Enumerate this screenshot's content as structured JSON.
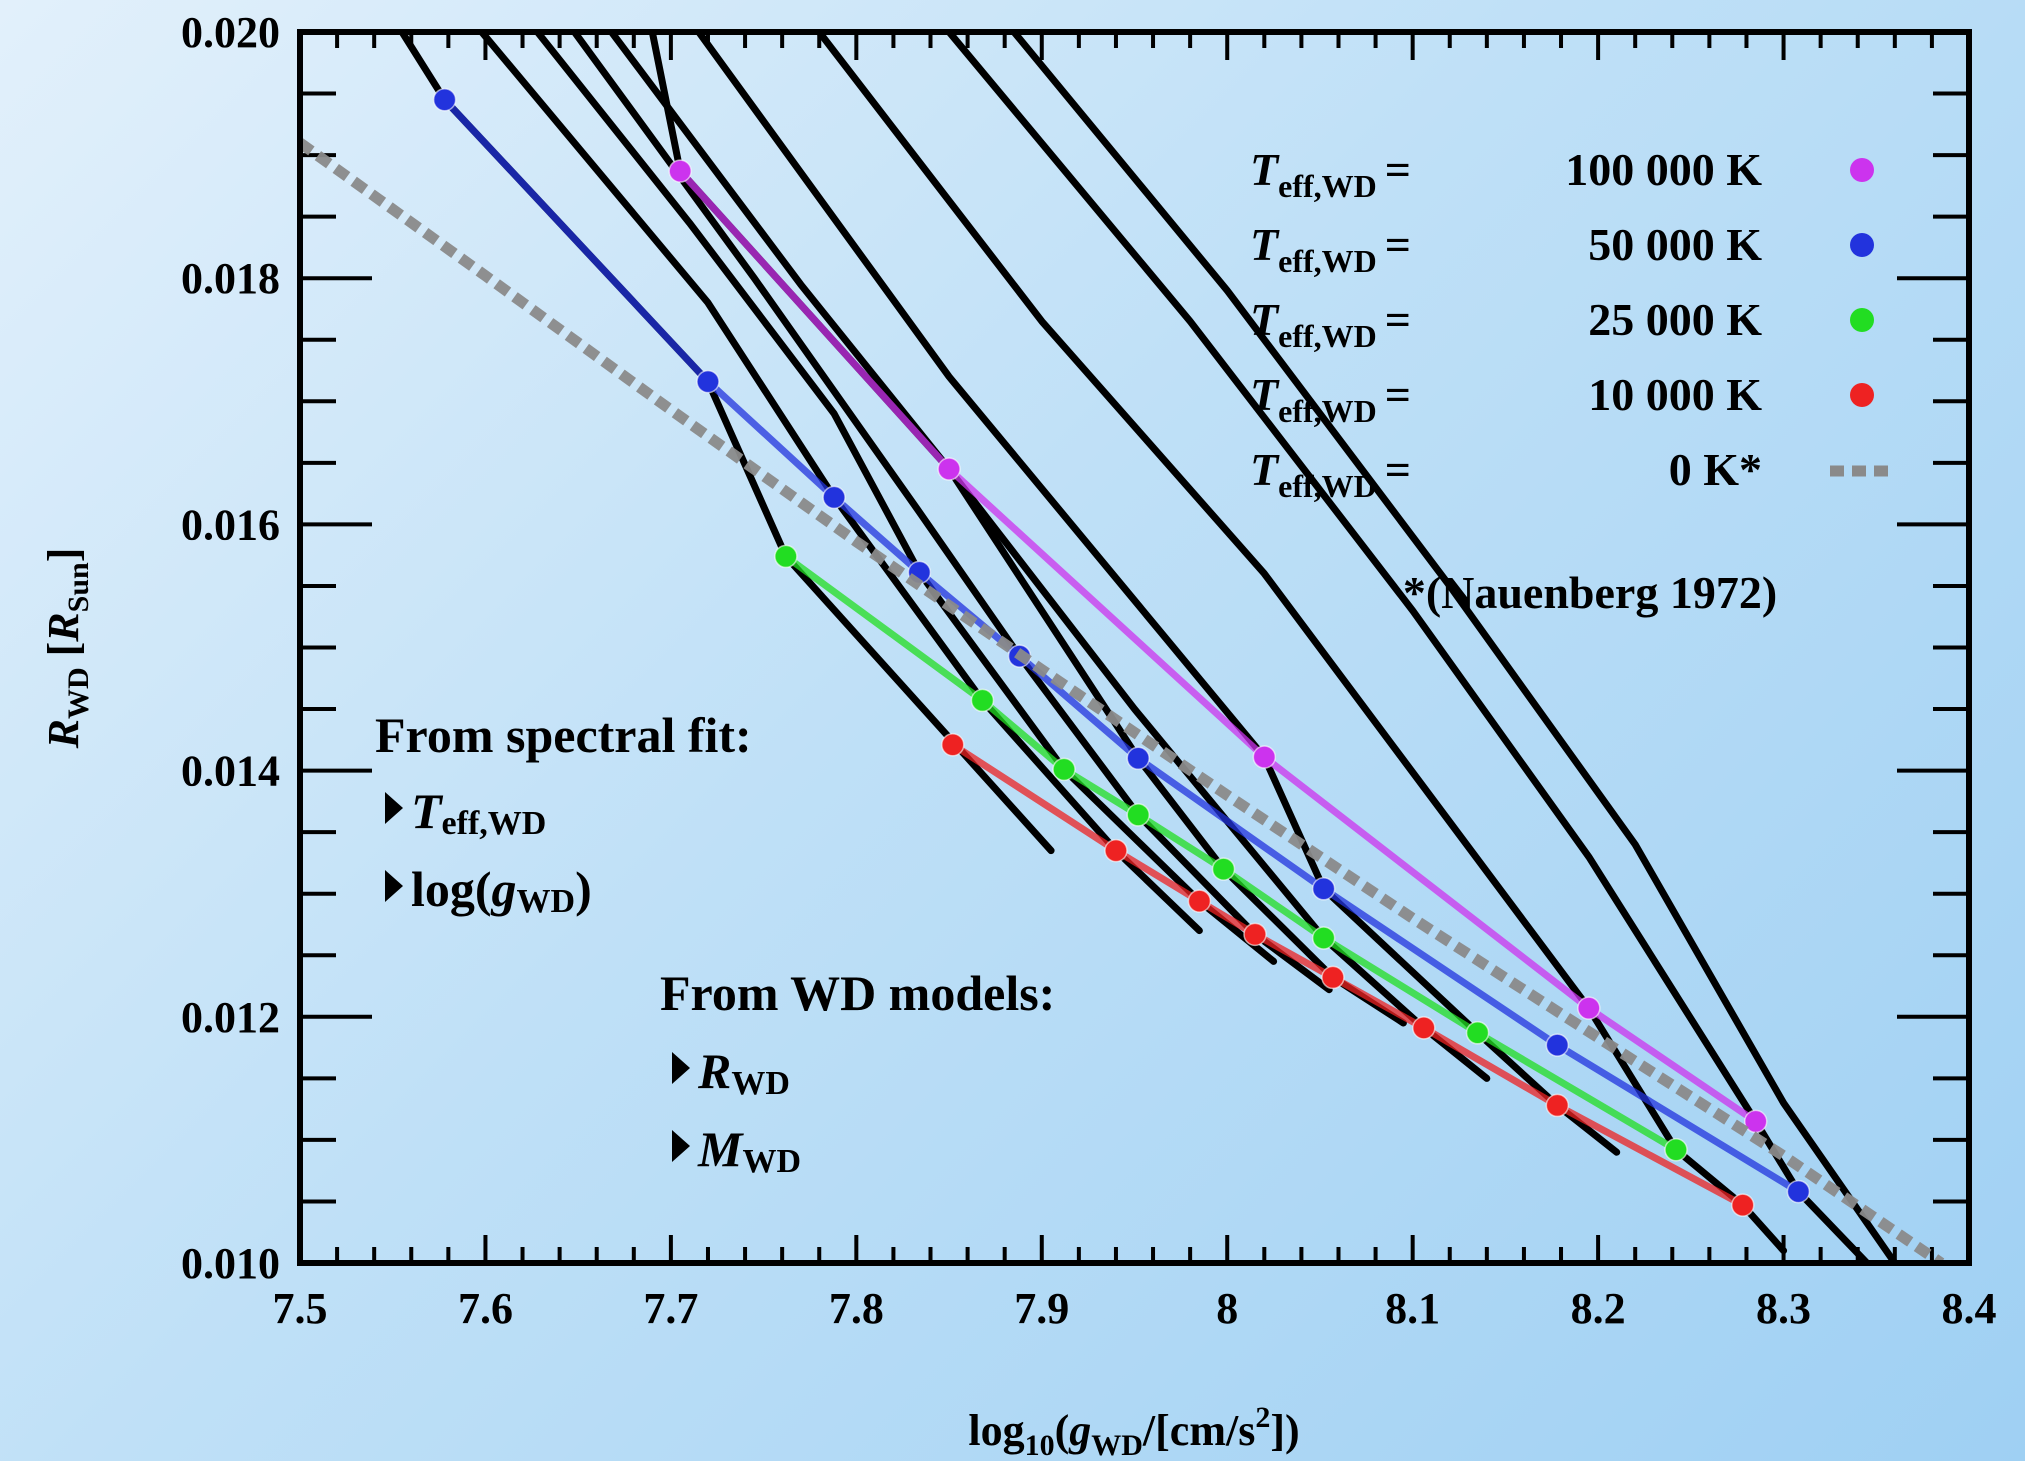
{
  "chart_data": {
    "type": "line",
    "xlabel": {
      "base": "log",
      "base_sub": "10",
      "open": "(",
      "var": "g",
      "var_sub": "WD",
      "units": "/[cm/s",
      "sup": "2",
      "close": "])"
    },
    "ylabel": {
      "var": "R",
      "var_sub": "WD",
      "units_open": " [",
      "unit_var": "R",
      "unit_sub": "Sun",
      "units_close": "]"
    },
    "xlim": [
      7.5,
      8.4
    ],
    "ylim": [
      0.01,
      0.02
    ],
    "x_ticks": [
      "7.5",
      "7.6",
      "7.7",
      "7.8",
      "7.9",
      "8",
      "8.1",
      "8.2",
      "8.3",
      "8.4"
    ],
    "y_ticks": [
      "0.010",
      "0.012",
      "0.014",
      "0.016",
      "0.018",
      "0.020"
    ],
    "legend_position": "top-right",
    "legend": [
      {
        "sym": "T",
        "sub": "eff,WD",
        "eq": "=",
        "value": "100 000 K",
        "color": "#cc33ee",
        "marker": "dot"
      },
      {
        "sym": "T",
        "sub": "eff,WD",
        "eq": "=",
        "value": "50 000 K",
        "color": "#2233dd",
        "marker": "dot"
      },
      {
        "sym": "T",
        "sub": "eff,WD",
        "eq": "=",
        "value": "25 000 K",
        "color": "#22dd22",
        "marker": "dot"
      },
      {
        "sym": "T",
        "sub": "eff,WD",
        "eq": "=",
        "value": "10 000 K",
        "color": "#ee2222",
        "marker": "dot"
      },
      {
        "sym": "T",
        "sub": "eff,WD",
        "eq": "=",
        "value": "0 K*",
        "color": "#8a8a8a",
        "marker": "dash"
      }
    ],
    "legend_note": "*(Nauenberg 1972)",
    "series": [
      {
        "color": "#cc33ee",
        "x": [
          7.705,
          7.85,
          8.02,
          8.195,
          8.285
        ],
        "y": [
          0.01887,
          0.01645,
          0.01411,
          0.01207,
          0.01115
        ]
      },
      {
        "color": "#2233dd",
        "x": [
          7.578,
          7.72,
          7.788,
          7.834,
          7.888,
          7.952,
          8.052,
          8.178,
          8.308
        ],
        "y": [
          0.01945,
          0.01716,
          0.01622,
          0.01561,
          0.01493,
          0.0141,
          0.01304,
          0.01177,
          0.01058
        ]
      },
      {
        "color": "#22dd22",
        "x": [
          7.762,
          7.868,
          7.912,
          7.952,
          7.998,
          8.052,
          8.135,
          8.242
        ],
        "y": [
          0.01574,
          0.01457,
          0.01401,
          0.01364,
          0.0132,
          0.01264,
          0.01187,
          0.01092
        ]
      },
      {
        "color": "#ee2222",
        "x": [
          7.852,
          7.94,
          7.985,
          8.015,
          8.057,
          8.106,
          8.178,
          8.278
        ],
        "y": [
          0.01421,
          0.01335,
          0.01294,
          0.01267,
          0.01232,
          0.01191,
          0.01128,
          0.01047
        ]
      },
      {
        "color": "#8a8a8a",
        "dashed": true,
        "x": [
          7.5,
          7.6,
          7.7,
          7.8,
          7.9,
          8.0,
          8.1,
          8.2,
          8.3,
          8.385
        ],
        "y": [
          0.0191,
          0.01802,
          0.01693,
          0.01586,
          0.01482,
          0.0138,
          0.0128,
          0.01183,
          0.01087,
          0.01
        ]
      }
    ],
    "model_tracks": [
      {
        "x": [
          7.555,
          7.578,
          7.72,
          7.762,
          7.905
        ],
        "y": [
          0.02,
          0.01945,
          0.01716,
          0.01574,
          0.01335
        ]
      },
      {
        "x": [
          7.598,
          7.72,
          7.788,
          7.868,
          7.94,
          7.985
        ],
        "y": [
          0.02,
          0.0178,
          0.01622,
          0.01457,
          0.01335,
          0.0127
        ]
      },
      {
        "x": [
          7.628,
          7.71,
          7.788,
          7.834,
          7.912,
          7.985,
          8.025
        ],
        "y": [
          0.02,
          0.01845,
          0.0169,
          0.01561,
          0.01401,
          0.01294,
          0.01245
        ]
      },
      {
        "x": [
          7.648,
          7.745,
          7.834,
          7.888,
          7.952,
          8.015,
          8.055
        ],
        "y": [
          0.02,
          0.018,
          0.0161,
          0.01493,
          0.01364,
          0.01267,
          0.01222
        ]
      },
      {
        "x": [
          7.668,
          7.77,
          7.85,
          7.952,
          7.998,
          8.057,
          8.095
        ],
        "y": [
          0.02,
          0.01795,
          0.01645,
          0.0141,
          0.0132,
          0.01232,
          0.01195
        ]
      },
      {
        "x": [
          7.69,
          7.705,
          7.85,
          7.95,
          8.052,
          8.106,
          8.14
        ],
        "y": [
          0.02,
          0.01887,
          0.01645,
          0.0145,
          0.01264,
          0.01191,
          0.0115
        ]
      },
      {
        "x": [
          7.715,
          7.85,
          8.02,
          8.052,
          8.135,
          8.178,
          8.21
        ],
        "y": [
          0.02,
          0.0172,
          0.01411,
          0.01304,
          0.01187,
          0.01128,
          0.0109
        ]
      },
      {
        "x": [
          7.78,
          7.9,
          8.02,
          8.195,
          8.242,
          8.278,
          8.3
        ],
        "y": [
          0.02,
          0.01765,
          0.0156,
          0.01207,
          0.01092,
          0.01047,
          0.0101
        ]
      },
      {
        "x": [
          7.85,
          7.98,
          8.1,
          8.195,
          8.285,
          8.308,
          8.345
        ],
        "y": [
          0.02,
          0.01765,
          0.0153,
          0.0133,
          0.01115,
          0.01058,
          0.01
        ]
      },
      {
        "x": [
          7.885,
          8.0,
          8.12,
          8.22,
          8.3,
          8.36
        ],
        "y": [
          0.02,
          0.0179,
          0.0155,
          0.0134,
          0.0113,
          0.01
        ]
      }
    ],
    "annotations": {
      "spectral_heading": "From spectral fit:",
      "spectral_items": [
        {
          "pre": "",
          "sym": "T",
          "sub": "eff,WD",
          "post": ""
        },
        {
          "pre": "log(",
          "sym": "g",
          "sub": "WD",
          "post": ")"
        }
      ],
      "models_heading": "From WD models:",
      "models_items": [
        {
          "pre": "",
          "sym": "R",
          "sub": "WD",
          "post": ""
        },
        {
          "pre": "",
          "sym": "M",
          "sub": "WD",
          "post": ""
        }
      ]
    }
  }
}
